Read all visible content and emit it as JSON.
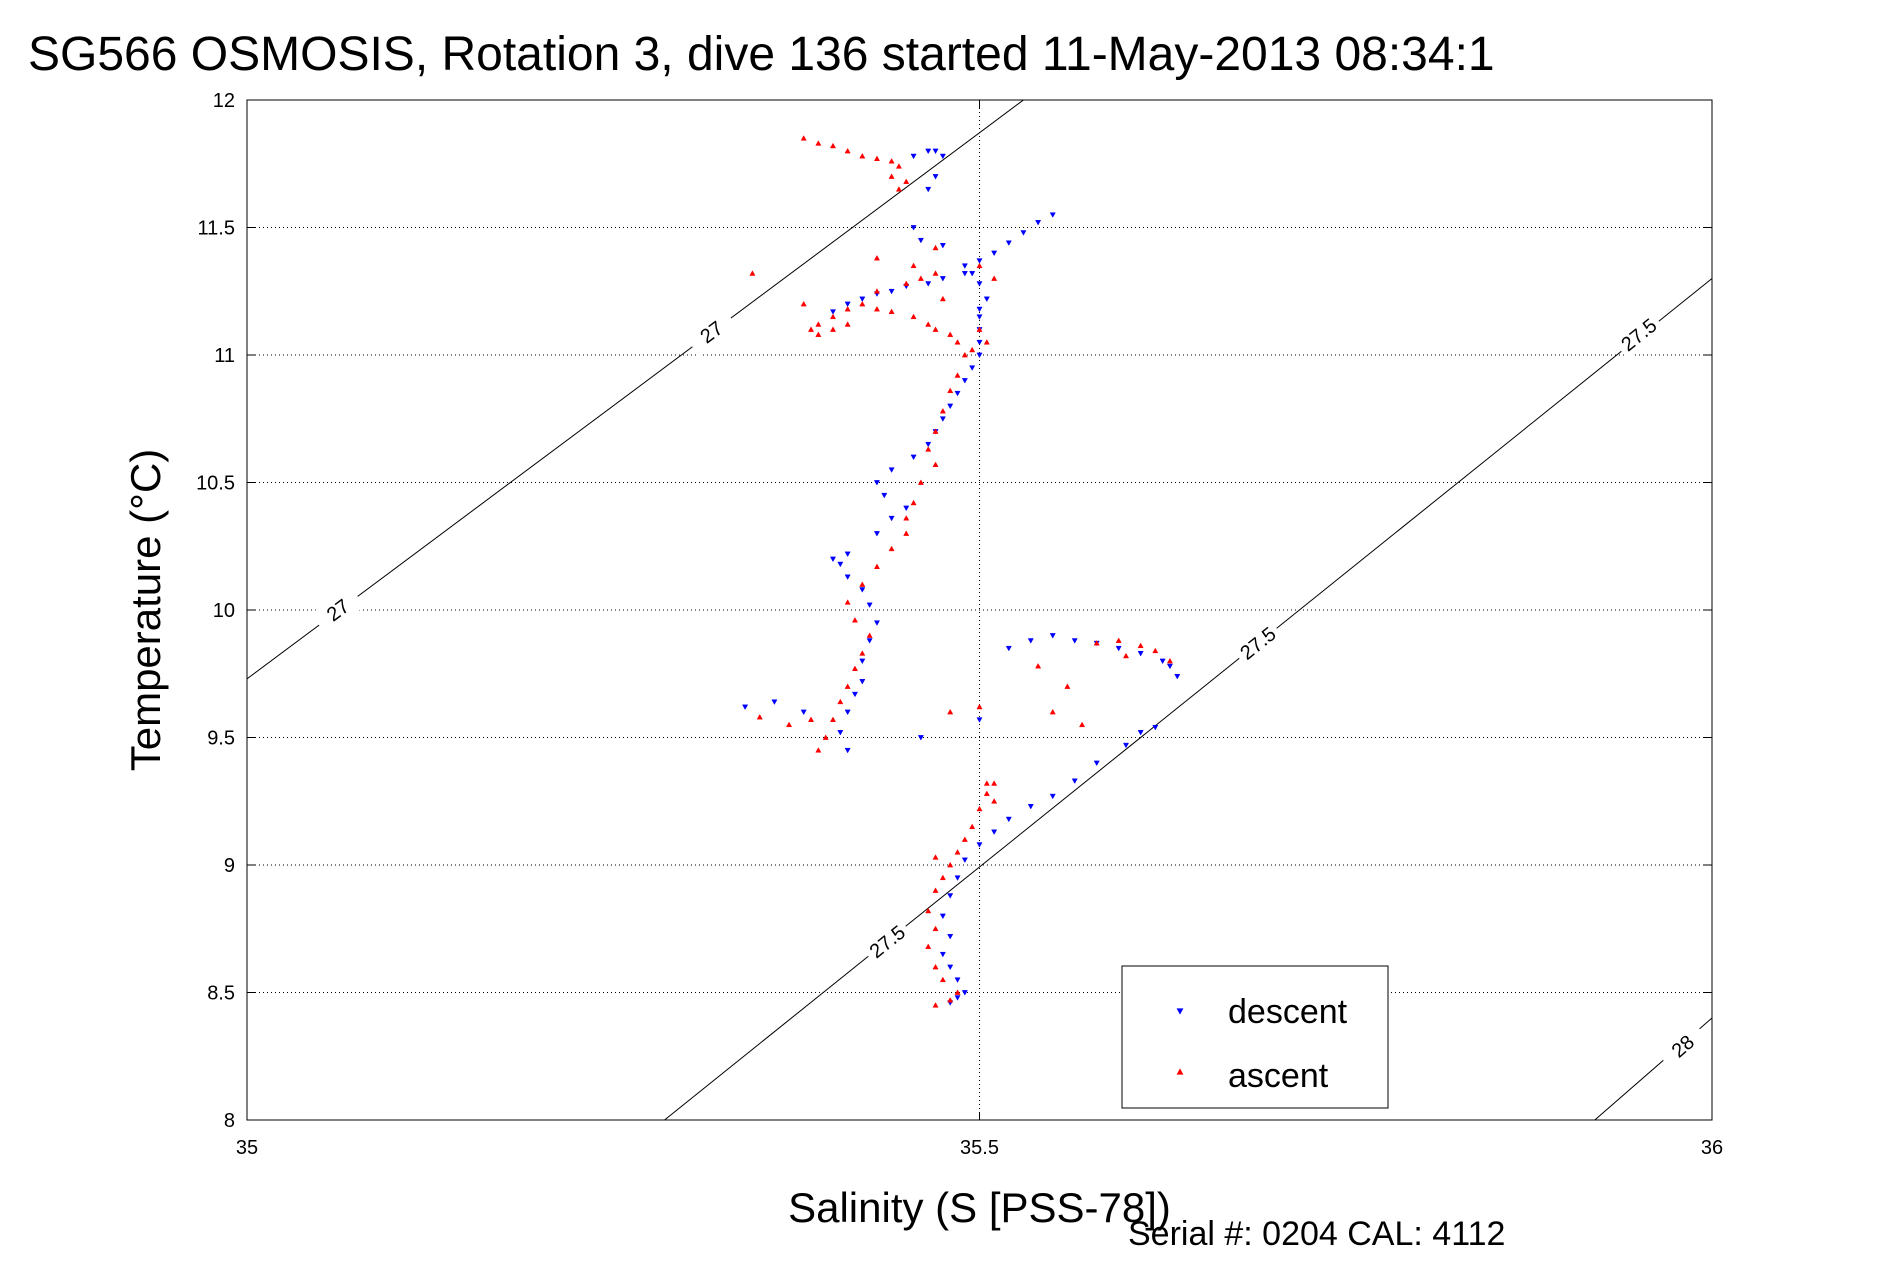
{
  "chart_data": {
    "type": "scatter",
    "title": "SG566 OSMOSIS, Rotation 3, dive 136 started 11-May-2013 08:34:1",
    "xlabel": "Salinity (S [PSS-78])",
    "ylabel": "Temperature (°C)",
    "xlim": [
      35,
      36
    ],
    "ylim": [
      8,
      12
    ],
    "xticks": [
      "35",
      "35.5",
      "36"
    ],
    "yticks": [
      "8",
      "8.5",
      "9",
      "9.5",
      "10",
      "10.5",
      "11",
      "11.5",
      "12"
    ],
    "grid": true,
    "legend_position": "bottom-right",
    "footer": "Serial #: 0204  CAL: 4112",
    "colors": {
      "descent": "#0000ff",
      "ascent": "#ff0000",
      "contour": "#000000"
    },
    "density_contours": [
      {
        "label": "27",
        "points": [
          [
            35,
            9.73
          ],
          [
            35.53,
            12.0
          ]
        ],
        "label_positions": [
          [
            35.062,
            10.0
          ],
          [
            35.317,
            11.09
          ]
        ]
      },
      {
        "label": "27.5",
        "points": [
          [
            35.285,
            8.0
          ],
          [
            36,
            11.3
          ]
        ],
        "label_positions": [
          [
            35.437,
            8.7
          ],
          [
            35.69,
            9.87
          ],
          [
            35.95,
            11.08
          ]
        ]
      },
      {
        "label": "28",
        "points": [
          [
            35.92,
            8.0
          ],
          [
            36,
            8.4
          ]
        ],
        "label_positions": [
          [
            35.98,
            8.29
          ]
        ]
      }
    ],
    "series": [
      {
        "name": "descent",
        "marker": "triangle-down",
        "points": [
          [
            35.48,
            8.46
          ],
          [
            35.485,
            8.48
          ],
          [
            35.49,
            8.5
          ],
          [
            35.485,
            8.55
          ],
          [
            35.48,
            8.6
          ],
          [
            35.475,
            8.65
          ],
          [
            35.48,
            8.72
          ],
          [
            35.475,
            8.8
          ],
          [
            35.48,
            8.88
          ],
          [
            35.485,
            8.95
          ],
          [
            35.49,
            9.02
          ],
          [
            35.5,
            9.08
          ],
          [
            35.51,
            9.13
          ],
          [
            35.52,
            9.18
          ],
          [
            35.535,
            9.23
          ],
          [
            35.55,
            9.27
          ],
          [
            35.565,
            9.33
          ],
          [
            35.58,
            9.4
          ],
          [
            35.6,
            9.47
          ],
          [
            35.61,
            9.52
          ],
          [
            35.62,
            9.54
          ],
          [
            35.52,
            9.85
          ],
          [
            35.535,
            9.88
          ],
          [
            35.55,
            9.9
          ],
          [
            35.565,
            9.88
          ],
          [
            35.58,
            9.87
          ],
          [
            35.595,
            9.85
          ],
          [
            35.61,
            9.83
          ],
          [
            35.625,
            9.8
          ],
          [
            35.63,
            9.78
          ],
          [
            35.635,
            9.74
          ],
          [
            35.41,
            9.45
          ],
          [
            35.405,
            9.52
          ],
          [
            35.41,
            9.6
          ],
          [
            35.415,
            9.67
          ],
          [
            35.42,
            9.72
          ],
          [
            35.42,
            9.8
          ],
          [
            35.425,
            9.88
          ],
          [
            35.43,
            9.95
          ],
          [
            35.425,
            10.02
          ],
          [
            35.42,
            10.08
          ],
          [
            35.41,
            10.13
          ],
          [
            35.405,
            10.18
          ],
          [
            35.4,
            10.2
          ],
          [
            35.41,
            10.22
          ],
          [
            35.43,
            10.3
          ],
          [
            35.44,
            10.36
          ],
          [
            35.45,
            10.4
          ],
          [
            35.435,
            10.45
          ],
          [
            35.43,
            10.5
          ],
          [
            35.44,
            10.55
          ],
          [
            35.455,
            10.6
          ],
          [
            35.465,
            10.65
          ],
          [
            35.47,
            10.7
          ],
          [
            35.475,
            10.75
          ],
          [
            35.48,
            10.8
          ],
          [
            35.485,
            10.85
          ],
          [
            35.49,
            10.9
          ],
          [
            35.495,
            10.95
          ],
          [
            35.5,
            11.0
          ],
          [
            35.5,
            11.05
          ],
          [
            35.5,
            11.1
          ],
          [
            35.5,
            11.15
          ],
          [
            35.5,
            11.18
          ],
          [
            35.505,
            11.22
          ],
          [
            35.5,
            11.28
          ],
          [
            35.495,
            11.32
          ],
          [
            35.49,
            11.35
          ],
          [
            35.5,
            11.37
          ],
          [
            35.51,
            11.4
          ],
          [
            35.52,
            11.44
          ],
          [
            35.53,
            11.48
          ],
          [
            35.54,
            11.52
          ],
          [
            35.55,
            11.55
          ],
          [
            35.42,
            11.22
          ],
          [
            35.43,
            11.24
          ],
          [
            35.44,
            11.25
          ],
          [
            35.45,
            11.27
          ],
          [
            35.465,
            11.28
          ],
          [
            35.475,
            11.3
          ],
          [
            35.49,
            11.32
          ],
          [
            35.41,
            11.2
          ],
          [
            35.4,
            11.17
          ],
          [
            35.455,
            11.78
          ],
          [
            35.465,
            11.8
          ],
          [
            35.47,
            11.8
          ],
          [
            35.475,
            11.78
          ],
          [
            35.47,
            11.7
          ],
          [
            35.465,
            11.65
          ],
          [
            35.455,
            11.5
          ],
          [
            35.46,
            11.45
          ],
          [
            35.475,
            11.43
          ],
          [
            35.34,
            9.62
          ],
          [
            35.36,
            9.64
          ],
          [
            35.38,
            9.6
          ],
          [
            35.46,
            9.5
          ],
          [
            35.5,
            9.57
          ]
        ]
      },
      {
        "name": "ascent",
        "marker": "triangle-up",
        "points": [
          [
            35.47,
            8.45
          ],
          [
            35.48,
            8.47
          ],
          [
            35.485,
            8.5
          ],
          [
            35.475,
            8.55
          ],
          [
            35.47,
            8.6
          ],
          [
            35.465,
            8.68
          ],
          [
            35.47,
            8.75
          ],
          [
            35.465,
            8.82
          ],
          [
            35.47,
            8.9
          ],
          [
            35.475,
            8.95
          ],
          [
            35.48,
            9.0
          ],
          [
            35.485,
            9.05
          ],
          [
            35.49,
            9.1
          ],
          [
            35.495,
            9.15
          ],
          [
            35.5,
            9.22
          ],
          [
            35.505,
            9.28
          ],
          [
            35.51,
            9.32
          ],
          [
            35.39,
            9.45
          ],
          [
            35.395,
            9.5
          ],
          [
            35.4,
            9.57
          ],
          [
            35.405,
            9.64
          ],
          [
            35.41,
            9.7
          ],
          [
            35.415,
            9.77
          ],
          [
            35.42,
            9.83
          ],
          [
            35.425,
            9.9
          ],
          [
            35.415,
            9.96
          ],
          [
            35.41,
            10.03
          ],
          [
            35.42,
            10.1
          ],
          [
            35.43,
            10.17
          ],
          [
            35.44,
            10.24
          ],
          [
            35.45,
            10.3
          ],
          [
            35.45,
            10.36
          ],
          [
            35.455,
            10.42
          ],
          [
            35.46,
            10.5
          ],
          [
            35.47,
            10.57
          ],
          [
            35.465,
            10.63
          ],
          [
            35.47,
            10.7
          ],
          [
            35.475,
            10.78
          ],
          [
            35.48,
            10.86
          ],
          [
            35.485,
            10.92
          ],
          [
            35.49,
            11.0
          ],
          [
            35.485,
            11.05
          ],
          [
            35.48,
            11.08
          ],
          [
            35.47,
            11.1
          ],
          [
            35.465,
            11.12
          ],
          [
            35.455,
            11.15
          ],
          [
            35.44,
            11.17
          ],
          [
            35.43,
            11.18
          ],
          [
            35.42,
            11.2
          ],
          [
            35.41,
            11.18
          ],
          [
            35.4,
            11.15
          ],
          [
            35.39,
            11.12
          ],
          [
            35.385,
            11.1
          ],
          [
            35.39,
            11.08
          ],
          [
            35.4,
            11.1
          ],
          [
            35.41,
            11.12
          ],
          [
            35.43,
            11.25
          ],
          [
            35.45,
            11.28
          ],
          [
            35.46,
            11.3
          ],
          [
            35.47,
            11.32
          ],
          [
            35.455,
            11.35
          ],
          [
            35.475,
            11.22
          ],
          [
            35.5,
            11.1
          ],
          [
            35.505,
            11.05
          ],
          [
            35.495,
            11.02
          ],
          [
            35.38,
            11.85
          ],
          [
            35.39,
            11.83
          ],
          [
            35.4,
            11.82
          ],
          [
            35.41,
            11.8
          ],
          [
            35.42,
            11.78
          ],
          [
            35.43,
            11.77
          ],
          [
            35.44,
            11.76
          ],
          [
            35.445,
            11.74
          ],
          [
            35.44,
            11.7
          ],
          [
            35.45,
            11.68
          ],
          [
            35.445,
            11.65
          ],
          [
            35.58,
            9.87
          ],
          [
            35.595,
            9.88
          ],
          [
            35.61,
            9.86
          ],
          [
            35.62,
            9.84
          ],
          [
            35.63,
            9.8
          ],
          [
            35.6,
            9.82
          ],
          [
            35.56,
            9.7
          ],
          [
            35.55,
            9.6
          ],
          [
            35.57,
            9.55
          ],
          [
            35.54,
            9.78
          ],
          [
            35.35,
            9.58
          ],
          [
            35.37,
            9.55
          ],
          [
            35.385,
            9.57
          ],
          [
            35.48,
            9.6
          ],
          [
            35.5,
            9.62
          ],
          [
            35.505,
            9.32
          ],
          [
            35.51,
            9.25
          ],
          [
            35.47,
            9.03
          ],
          [
            35.345,
            11.32
          ],
          [
            35.38,
            11.2
          ],
          [
            35.43,
            11.38
          ],
          [
            35.47,
            11.42
          ],
          [
            35.5,
            11.35
          ],
          [
            35.51,
            11.3
          ]
        ]
      }
    ]
  }
}
